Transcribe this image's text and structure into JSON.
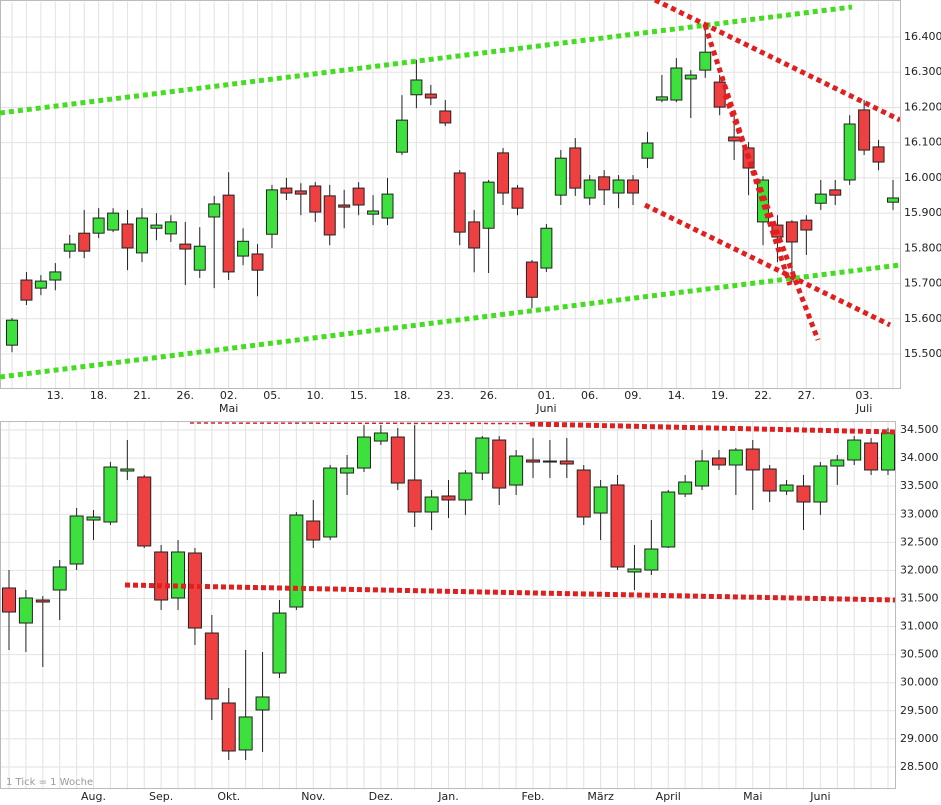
{
  "chart_data": [
    {
      "type": "candlestick",
      "up_color": "#3de03d",
      "down_color": "#ee4040",
      "grid": true,
      "categories": [
        null,
        null,
        null,
        "13.",
        null,
        null,
        "18.",
        null,
        null,
        "21.",
        null,
        null,
        "26.",
        null,
        null,
        "02.",
        null,
        null,
        "05.",
        null,
        null,
        "10.",
        null,
        null,
        "15.",
        null,
        null,
        "18.",
        null,
        null,
        "23.",
        null,
        null,
        "26.",
        null,
        null,
        null,
        "01.",
        null,
        null,
        "06.",
        null,
        null,
        "09.",
        null,
        null,
        "14.",
        null,
        null,
        "19.",
        null,
        null,
        "22.",
        null,
        null,
        "27.",
        null,
        null,
        null,
        "03.",
        null,
        null
      ],
      "months": [
        null,
        null,
        null,
        null,
        null,
        null,
        null,
        null,
        null,
        null,
        null,
        null,
        null,
        null,
        null,
        "Mai",
        null,
        null,
        null,
        null,
        null,
        null,
        null,
        null,
        null,
        null,
        null,
        null,
        null,
        null,
        null,
        null,
        null,
        null,
        null,
        null,
        null,
        "Juni",
        null,
        null,
        null,
        null,
        null,
        null,
        null,
        null,
        null,
        null,
        null,
        null,
        null,
        null,
        null,
        null,
        null,
        null,
        null,
        null,
        null,
        "Juli",
        null,
        null
      ],
      "open": [
        15525,
        15710,
        15687,
        15710,
        15792,
        15843,
        15843,
        15852,
        15869,
        15787,
        15857,
        15841,
        15812,
        15738,
        15889,
        15951,
        15778,
        15784,
        15840,
        15971,
        15963,
        15977,
        15949,
        15923,
        15971,
        15897,
        15886,
        16073,
        16236,
        16238,
        16190,
        16014,
        15875,
        15857,
        16071,
        15971,
        15761,
        15744,
        15951,
        16085,
        15943,
        16003,
        15957,
        15994,
        16056,
        16221,
        16221,
        16281,
        16306,
        16272,
        16116,
        16085,
        15875,
        15866,
        15875,
        15880,
        15928,
        15966,
        15994,
        16193,
        16088,
        15931
      ],
      "high": [
        15602,
        15733,
        15724,
        15758,
        15838,
        15909,
        15914,
        15914,
        15909,
        15914,
        15900,
        15894,
        15875,
        15860,
        15949,
        16016,
        15857,
        15812,
        15980,
        16000,
        15985,
        15988,
        15980,
        15966,
        15988,
        15951,
        16000,
        16235,
        16335,
        16264,
        16221,
        16022,
        15909,
        15994,
        16085,
        15980,
        15767,
        15869,
        16079,
        16113,
        16008,
        16022,
        16008,
        16008,
        16130,
        16292,
        16340,
        16306,
        16434,
        16292,
        16178,
        16102,
        16005,
        15894,
        15880,
        15894,
        15994,
        15994,
        16178,
        16221,
        16108,
        15994
      ],
      "low": [
        15505,
        15639,
        15667,
        15681,
        15772,
        15772,
        15829,
        15846,
        15738,
        15761,
        15823,
        15818,
        15696,
        15716,
        15687,
        15710,
        15752,
        15664,
        15801,
        15937,
        15894,
        15875,
        15809,
        15857,
        15894,
        15866,
        15866,
        16065,
        16198,
        16207,
        16147,
        15809,
        15732,
        15730,
        15923,
        15894,
        15630,
        15733,
        15923,
        15949,
        15923,
        15923,
        15914,
        15923,
        16028,
        16215,
        16215,
        16170,
        16284,
        16178,
        16051,
        15951,
        15809,
        15761,
        15704,
        15781,
        15909,
        15923,
        15980,
        16065,
        16022,
        15909
      ],
      "close": [
        15596,
        15653,
        15707,
        15733,
        15812,
        15792,
        15886,
        15900,
        15801,
        15886,
        15866,
        15875,
        15798,
        15806,
        15926,
        15733,
        15820,
        15738,
        15966,
        15957,
        15954,
        15903,
        15838,
        15917,
        15923,
        15906,
        15954,
        16164,
        16278,
        16227,
        16156,
        15846,
        15801,
        15988,
        15957,
        15914,
        15661,
        15857,
        16056,
        15971,
        15994,
        15966,
        15994,
        15957,
        16099,
        16230,
        16312,
        16292,
        16357,
        16201,
        16105,
        16028,
        15994,
        15832,
        15818,
        15852,
        15954,
        15951,
        16153,
        16079,
        16045,
        15943
      ],
      "ylim": [
        15400,
        16500
      ],
      "yticks": [
        {
          "value": 15500,
          "label": "15.500"
        },
        {
          "value": 15600,
          "label": "15.600"
        },
        {
          "value": 15700,
          "label": "15.700"
        },
        {
          "value": 15800,
          "label": "15.800"
        },
        {
          "value": 15900,
          "label": "15.900"
        },
        {
          "value": 16000,
          "label": "16.000"
        },
        {
          "value": 16100,
          "label": "16.100"
        },
        {
          "value": 16200,
          "label": "16.200"
        },
        {
          "value": 16300,
          "label": "16.300"
        },
        {
          "value": 16400,
          "label": "16.400"
        }
      ]
    },
    {
      "type": "candlestick",
      "up_color": "#3de03d",
      "down_color": "#ee4040",
      "grid": true,
      "note": "1 Tick = 1 Woche",
      "categories": [
        null,
        null,
        null,
        null,
        null,
        "Aug.",
        null,
        null,
        null,
        "Sep.",
        null,
        null,
        null,
        "Okt.",
        null,
        null,
        null,
        null,
        "Nov.",
        null,
        null,
        null,
        "Dez.",
        null,
        null,
        null,
        "Jan.",
        null,
        null,
        null,
        null,
        "Feb.",
        null,
        null,
        null,
        "März",
        null,
        null,
        null,
        "April",
        null,
        null,
        null,
        null,
        "Mai",
        null,
        null,
        null,
        "Juni",
        null,
        null,
        null,
        null
      ],
      "open": [
        31687,
        31063,
        31473,
        31651,
        32114,
        32897,
        32862,
        33770,
        33663,
        32328,
        31509,
        32310,
        30885,
        29639,
        28802,
        29514,
        30173,
        31348,
        32880,
        32595,
        33734,
        33823,
        34304,
        34375,
        33610,
        33040,
        33325,
        33254,
        33734,
        34322,
        33521,
        33966,
        33930,
        33948,
        33788,
        33022,
        33521,
        31972,
        32007,
        32417,
        33361,
        33503,
        34001,
        33877,
        34162,
        33806,
        33414,
        33503,
        33218,
        33859,
        33966,
        34269,
        33788
      ],
      "high": [
        32007,
        31651,
        31544,
        32185,
        33111,
        33076,
        33930,
        34322,
        33699,
        32452,
        32541,
        32399,
        31206,
        29906,
        30583,
        30547,
        31473,
        33040,
        33254,
        33877,
        34055,
        34589,
        34589,
        34536,
        34589,
        33432,
        33610,
        33788,
        34393,
        34393,
        34144,
        34358,
        34322,
        34358,
        33877,
        33610,
        33699,
        32452,
        32897,
        33432,
        33699,
        34144,
        34144,
        34180,
        34322,
        33877,
        33610,
        33699,
        33930,
        34055,
        34393,
        34358,
        34536
      ],
      "low": [
        30583,
        30547,
        30280,
        31117,
        32007,
        32541,
        32808,
        33610,
        32399,
        31295,
        31295,
        30672,
        29336,
        28624,
        28624,
        28767,
        30084,
        31295,
        32399,
        32541,
        33343,
        33752,
        34233,
        33432,
        32773,
        32719,
        32933,
        32986,
        33610,
        33165,
        33343,
        33645,
        33645,
        33645,
        32808,
        32541,
        32007,
        31651,
        31918,
        32399,
        33307,
        33432,
        33788,
        33343,
        33076,
        33218,
        33343,
        32719,
        32986,
        33521,
        33877,
        33699,
        33699
      ],
      "close": [
        31259,
        31509,
        31437,
        32061,
        32969,
        32951,
        33841,
        33806,
        32435,
        31473,
        32328,
        30974,
        29710,
        28784,
        29390,
        29746,
        31241,
        32986,
        32541,
        33823,
        33823,
        34375,
        34447,
        33556,
        33040,
        33307,
        33254,
        33734,
        34358,
        33467,
        34037,
        33930,
        33948,
        33895,
        32951,
        33485,
        32061,
        32025,
        32381,
        33396,
        33574,
        33948,
        33877,
        34144,
        33788,
        33414,
        33521,
        33218,
        33859,
        33966,
        34322,
        33788,
        34447
      ],
      "ylim": [
        28100,
        34650
      ],
      "yticks": [
        {
          "value": 28500,
          "label": "28.500"
        },
        {
          "value": 29000,
          "label": "29.000"
        },
        {
          "value": 29500,
          "label": "29.500"
        },
        {
          "value": 30000,
          "label": "30.000"
        },
        {
          "value": 30500,
          "label": "30.500"
        },
        {
          "value": 31000,
          "label": "31.000"
        },
        {
          "value": 31500,
          "label": "31.500"
        },
        {
          "value": 32000,
          "label": "32.000"
        },
        {
          "value": 32500,
          "label": "32.500"
        },
        {
          "value": 33000,
          "label": "33.000"
        },
        {
          "value": 33500,
          "label": "33.500"
        },
        {
          "value": 34000,
          "label": "34.000"
        },
        {
          "value": 34500,
          "label": "34.500"
        }
      ]
    }
  ]
}
